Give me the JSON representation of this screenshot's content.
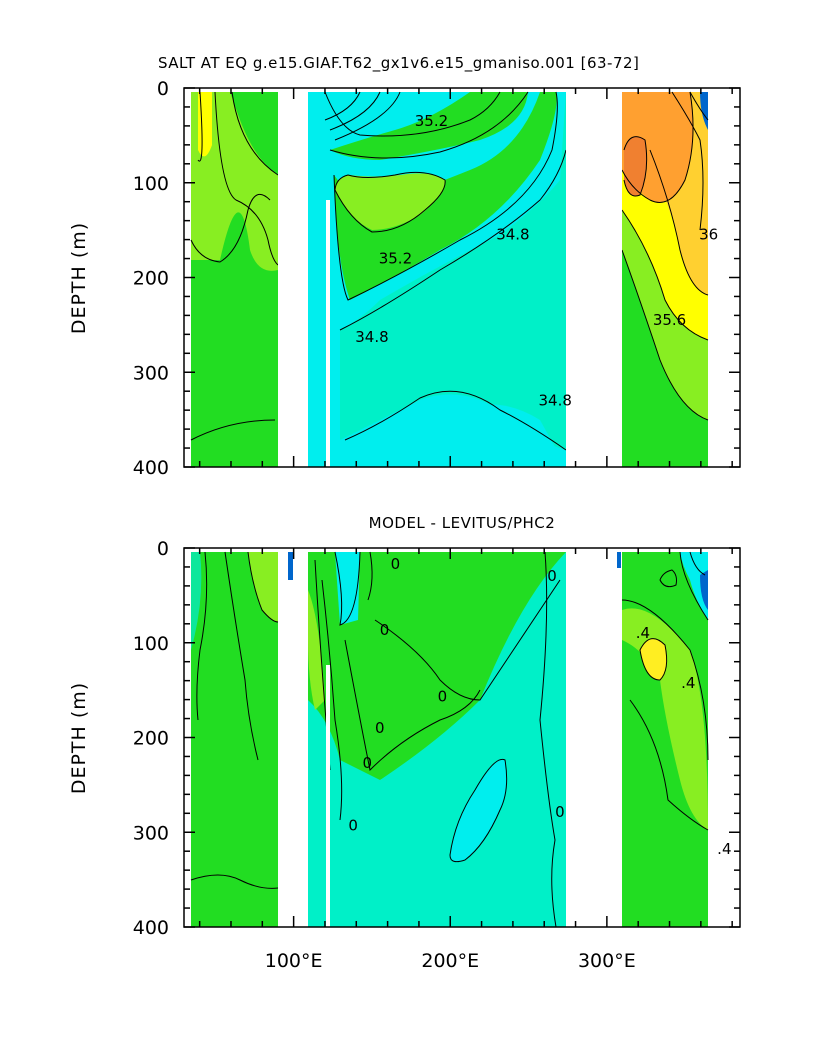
{
  "chart_data": [
    {
      "type": "contour",
      "title": "SALT AT EQ g.e15.GIAF.T62_gx1v6.e15_gmaniso.001 [63-72]",
      "ylabel": "DEPTH (m)",
      "xlabel": "",
      "xlim": [
        30,
        385
      ],
      "ylim": [
        400,
        0
      ],
      "y_ticks": [
        "0",
        "100",
        "200",
        "300",
        "400"
      ],
      "x_ticks": [],
      "contour_labels": [
        {
          "text": "35.2",
          "x": 188,
          "y": 40
        },
        {
          "text": "35.2",
          "x": 165,
          "y": 185
        },
        {
          "text": "34.8",
          "x": 240,
          "y": 160
        },
        {
          "text": "34.8",
          "x": 150,
          "y": 268
        },
        {
          "text": "34.8",
          "x": 267,
          "y": 335
        },
        {
          "text": "36",
          "x": 365,
          "y": 160
        },
        {
          "text": "35.6",
          "x": 340,
          "y": 250
        }
      ],
      "colors": {
        "cyan": "#00eeee",
        "aqua": "#00f0c8",
        "green": "#22dd22",
        "lightgreen": "#88ee22",
        "yellow": "#ffff00",
        "gold": "#ffd030",
        "orange": "#ffa030",
        "darkorange": "#f08030",
        "blue": "#0066cc"
      }
    },
    {
      "type": "contour",
      "title": "MODEL - LEVITUS/PHC2",
      "ylabel": "DEPTH (m)",
      "xlabel": "",
      "xlim": [
        30,
        385
      ],
      "ylim": [
        400,
        0
      ],
      "y_ticks": [
        "0",
        "100",
        "200",
        "300",
        "400"
      ],
      "x_ticks": [
        "100°E",
        "200°E",
        "300°E"
      ],
      "contour_labels": [
        {
          "text": "0",
          "x": 165,
          "y": 22
        },
        {
          "text": "0",
          "x": 265,
          "y": 35
        },
        {
          "text": "0",
          "x": 158,
          "y": 92
        },
        {
          "text": "0",
          "x": 155,
          "y": 195
        },
        {
          "text": "0",
          "x": 195,
          "y": 162
        },
        {
          "text": "0",
          "x": 147,
          "y": 232
        },
        {
          "text": "0",
          "x": 138,
          "y": 298
        },
        {
          "text": "0",
          "x": 270,
          "y": 284
        },
        {
          "text": ".4",
          "x": 323,
          "y": 95
        },
        {
          "text": ".4",
          "x": 352,
          "y": 148
        },
        {
          "text": ".4",
          "x": 375,
          "y": 323
        }
      ],
      "colors": {
        "aqua": "#00f0c8",
        "cyan": "#00eeee",
        "green": "#22dd22",
        "lightgreen": "#88ee22",
        "yellow": "#ffee22",
        "blue": "#0066cc"
      }
    }
  ]
}
